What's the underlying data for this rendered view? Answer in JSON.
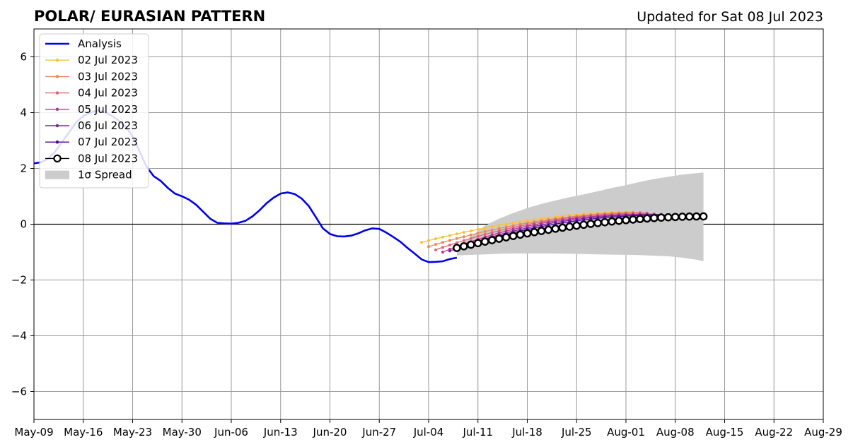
{
  "title": "POLAR/ EURASIAN  PATTERN",
  "updated": "Updated for Sat 08 Jul 2023",
  "chart_data": {
    "type": "line",
    "title": "POLAR/ EURASIAN  PATTERN",
    "xlabel": "",
    "ylabel": "",
    "x_axis": "date",
    "xlim": [
      "2023-05-09",
      "2023-08-29"
    ],
    "ylim": [
      -7,
      7
    ],
    "x_ticks": [
      "2023-05-09",
      "2023-05-16",
      "2023-05-23",
      "2023-05-30",
      "2023-06-06",
      "2023-06-13",
      "2023-06-20",
      "2023-06-27",
      "2023-07-04",
      "2023-07-11",
      "2023-07-18",
      "2023-07-25",
      "2023-08-01",
      "2023-08-08",
      "2023-08-15",
      "2023-08-22",
      "2023-08-29"
    ],
    "x_tick_labels": [
      "May-09",
      "May-16",
      "May-23",
      "May-30",
      "Jun-06",
      "Jun-13",
      "Jun-20",
      "Jun-27",
      "Jul-04",
      "Jul-11",
      "Jul-18",
      "Jul-25",
      "Aug-01",
      "Aug-08",
      "Aug-15",
      "Aug-22",
      "Aug-29"
    ],
    "y_ticks": [
      -6,
      -4,
      -2,
      0,
      2,
      4,
      6
    ],
    "y_tick_labels": [
      "−6",
      "−4",
      "−2",
      "0",
      "2",
      "4",
      "6"
    ],
    "grid": true,
    "legend_position": "top-left",
    "analysis": {
      "name": "Analysis",
      "color": "#0000ee",
      "x": [
        "2023-05-09",
        "2023-05-10",
        "2023-05-11",
        "2023-05-12",
        "2023-05-13",
        "2023-05-14",
        "2023-05-15",
        "2023-05-16",
        "2023-05-17",
        "2023-05-18",
        "2023-05-19",
        "2023-05-20",
        "2023-05-21",
        "2023-05-22",
        "2023-05-23",
        "2023-05-24",
        "2023-05-25",
        "2023-05-26",
        "2023-05-27",
        "2023-05-28",
        "2023-05-29",
        "2023-05-30",
        "2023-05-31",
        "2023-06-01",
        "2023-06-02",
        "2023-06-03",
        "2023-06-04",
        "2023-06-05",
        "2023-06-06",
        "2023-06-07",
        "2023-06-08",
        "2023-06-09",
        "2023-06-10",
        "2023-06-11",
        "2023-06-12",
        "2023-06-13",
        "2023-06-14",
        "2023-06-15",
        "2023-06-16",
        "2023-06-17",
        "2023-06-18",
        "2023-06-19",
        "2023-06-20",
        "2023-06-21",
        "2023-06-22",
        "2023-06-23",
        "2023-06-24",
        "2023-06-25",
        "2023-06-26",
        "2023-06-27",
        "2023-06-28",
        "2023-06-29",
        "2023-06-30",
        "2023-07-01",
        "2023-07-02",
        "2023-07-03",
        "2023-07-04",
        "2023-07-05",
        "2023-07-06",
        "2023-07-07",
        "2023-07-08"
      ],
      "y": [
        2.18,
        2.22,
        2.35,
        2.6,
        2.95,
        3.3,
        3.65,
        3.88,
        4.0,
        4.08,
        4.02,
        3.9,
        3.72,
        3.5,
        3.15,
        2.6,
        2.05,
        1.72,
        1.55,
        1.3,
        1.1,
        1.0,
        0.88,
        0.7,
        0.45,
        0.2,
        0.05,
        0.03,
        0.02,
        0.05,
        0.12,
        0.28,
        0.5,
        0.75,
        0.95,
        1.1,
        1.14,
        1.08,
        0.92,
        0.65,
        0.25,
        -0.15,
        -0.35,
        -0.43,
        -0.44,
        -0.41,
        -0.33,
        -0.22,
        -0.15,
        -0.17,
        -0.3,
        -0.46,
        -0.63,
        -0.85,
        -1.05,
        -1.26,
        -1.36,
        -1.35,
        -1.33,
        -1.25,
        -1.2
      ]
    },
    "spread": {
      "name": "1σ Spread",
      "color": "#cccccc",
      "x": [
        "2023-07-08",
        "2023-07-10",
        "2023-07-12",
        "2023-07-14",
        "2023-07-16",
        "2023-07-18",
        "2023-07-20",
        "2023-07-22",
        "2023-07-24",
        "2023-07-26",
        "2023-07-28",
        "2023-07-30",
        "2023-08-01",
        "2023-08-03",
        "2023-08-05",
        "2023-08-07",
        "2023-08-09",
        "2023-08-11",
        "2023-08-12"
      ],
      "upper": [
        -0.85,
        -0.45,
        -0.05,
        0.2,
        0.4,
        0.58,
        0.73,
        0.85,
        0.97,
        1.07,
        1.18,
        1.3,
        1.4,
        1.52,
        1.62,
        1.7,
        1.78,
        1.83,
        1.85
      ],
      "lower": [
        -1.12,
        -1.1,
        -1.08,
        -1.06,
        -1.05,
        -1.05,
        -1.05,
        -1.05,
        -1.06,
        -1.07,
        -1.08,
        -1.09,
        -1.1,
        -1.11,
        -1.13,
        -1.15,
        -1.2,
        -1.27,
        -1.33
      ]
    },
    "series": [
      {
        "name": "02 Jul 2023",
        "color": "#f8c33b",
        "start": "2023-07-03",
        "end": "2023-08-02",
        "y0": -0.65,
        "y1": 0.45,
        "shape": 0.55
      },
      {
        "name": "03 Jul 2023",
        "color": "#f0875a",
        "start": "2023-07-04",
        "end": "2023-08-03",
        "y0": -0.8,
        "y1": 0.42,
        "shape": 0.62
      },
      {
        "name": "04 Jul 2023",
        "color": "#e0657a",
        "start": "2023-07-05",
        "end": "2023-08-04",
        "y0": -0.92,
        "y1": 0.4,
        "shape": 0.75
      },
      {
        "name": "05 Jul 2023",
        "color": "#b8398e",
        "start": "2023-07-06",
        "end": "2023-08-05",
        "y0": -1.0,
        "y1": 0.36,
        "shape": 0.9
      },
      {
        "name": "06 Jul 2023",
        "color": "#8b1fa0",
        "start": "2023-07-07",
        "end": "2023-08-06",
        "y0": -0.96,
        "y1": 0.35,
        "shape": 0.85
      },
      {
        "name": "07 Jul 2023",
        "color": "#4b0aa0",
        "start": "2023-07-08",
        "end": "2023-08-07",
        "y0": -0.9,
        "y1": 0.33,
        "shape": 0.8
      },
      {
        "name": "08 Jul 2023",
        "color": "#000000",
        "start": "2023-07-08",
        "end": "2023-08-12",
        "y0": -0.85,
        "y1": 0.28,
        "shape": 0.6
      }
    ],
    "legend": [
      "Analysis",
      "02 Jul 2023",
      "03 Jul 2023",
      "04 Jul 2023",
      "05 Jul 2023",
      "06 Jul 2023",
      "07 Jul 2023",
      "08 Jul 2023",
      "1σ Spread"
    ]
  }
}
